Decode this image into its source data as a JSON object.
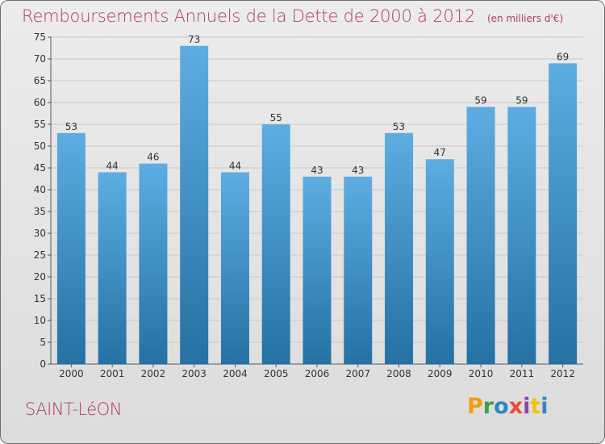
{
  "title": "Remboursements Annuels de la Dette de 2000 à 2012",
  "unit_note": "(en milliers d'€)",
  "commune": "SAINT-LéON",
  "logo": {
    "text": "Proxiti",
    "letters": [
      {
        "ch": "P",
        "color": "#f39c12"
      },
      {
        "ch": "r",
        "color": "#3aa14a"
      },
      {
        "ch": "o",
        "color": "#2e86c1"
      },
      {
        "ch": "x",
        "color": "#e74c3c"
      },
      {
        "ch": "i",
        "color": "#8e44ad"
      },
      {
        "ch": "t",
        "color": "#f1c40f"
      },
      {
        "ch": "i",
        "color": "#2e86c1"
      }
    ]
  },
  "colors": {
    "bar_top": "#5dade2",
    "bar_bottom": "#2471a3",
    "title": "#b03a6a",
    "grid": "#c8c8c8"
  },
  "chart_data": {
    "type": "bar",
    "categories": [
      "2000",
      "2001",
      "2002",
      "2003",
      "2004",
      "2005",
      "2006",
      "2007",
      "2008",
      "2009",
      "2010",
      "2011",
      "2012"
    ],
    "values": [
      53,
      44,
      46,
      73,
      44,
      55,
      43,
      43,
      53,
      47,
      59,
      59,
      69
    ],
    "ylim": [
      0,
      75
    ],
    "yticks": [
      0,
      5,
      10,
      15,
      20,
      25,
      30,
      35,
      40,
      45,
      50,
      55,
      60,
      65,
      70,
      75
    ],
    "grid": true,
    "title": "Remboursements Annuels de la Dette de 2000 à 2012",
    "ylabel": "(en milliers d'€)",
    "xlabel": ""
  }
}
